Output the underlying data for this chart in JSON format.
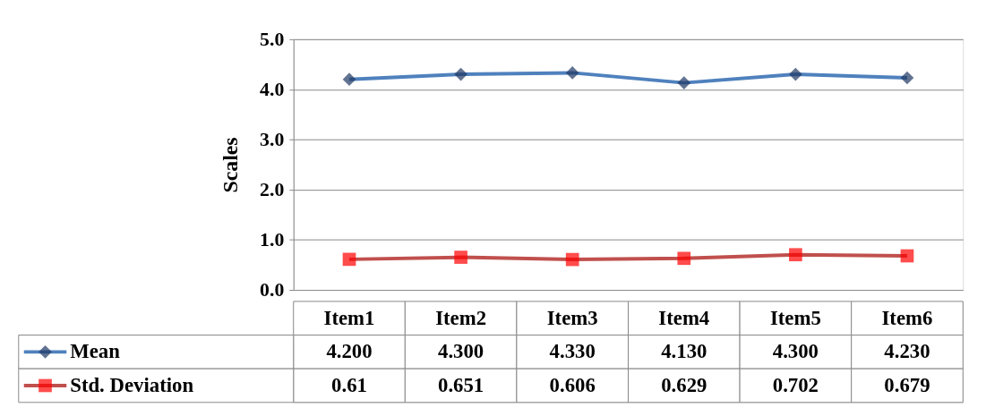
{
  "chart_data": {
    "type": "line",
    "ylabel": "Scales",
    "categories": [
      "Item1",
      "Item2",
      "Item3",
      "Item4",
      "Item5",
      "Item6"
    ],
    "series": [
      {
        "name": "Mean",
        "color": "#4f81bd",
        "marker": "diamond",
        "colors": [
          "#1f3864",
          "#1f3864",
          "#1f3864",
          "#1f3864",
          "#1f3864",
          "#1f3864"
        ],
        "values": [
          4.2,
          4.3,
          4.33,
          4.13,
          4.3,
          4.23
        ],
        "value_labels": [
          "4.200",
          "4.300",
          "4.330",
          "4.130",
          "4.300",
          "4.230"
        ]
      },
      {
        "name": "Std. Deviation",
        "color": "#c0504d",
        "marker": "square",
        "colors": [
          "#ff0000",
          "#ff0000",
          "#ff0000",
          "#ff0000",
          "#ff0000",
          "#ff0000"
        ],
        "values": [
          0.61,
          0.651,
          0.606,
          0.629,
          0.702,
          0.679
        ],
        "value_labels": [
          "0.61",
          "0.651",
          "0.606",
          "0.629",
          "0.702",
          "0.679"
        ]
      }
    ],
    "ylim": [
      0,
      5
    ],
    "yticks": [
      {
        "value": 0,
        "label": "0.0"
      },
      {
        "value": 1,
        "label": "1.0"
      },
      {
        "value": 2,
        "label": "2.0"
      },
      {
        "value": 3,
        "label": "3.0"
      },
      {
        "value": 4,
        "label": "4.0"
      },
      {
        "value": 5,
        "label": "5.0"
      }
    ],
    "grid": "y",
    "legend": "bottom",
    "line_style": "solid"
  }
}
